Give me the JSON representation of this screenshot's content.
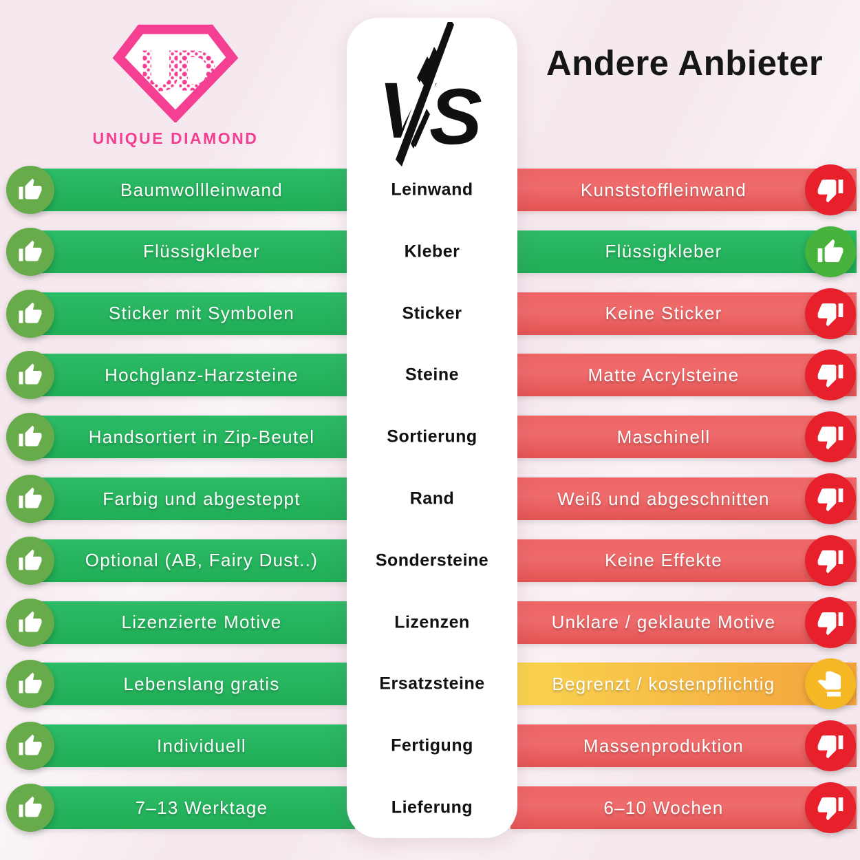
{
  "header": {
    "brand_monogram": "UD",
    "brand_name": "UNIQUE DIAMOND",
    "vs_label": "VS",
    "competitor_name": "Andere Anbieter"
  },
  "colors": {
    "background": "#f5e9ef",
    "brand_pink": "#f43f93",
    "ink": "#161616",
    "green_bar": "#2dbb66",
    "green_bar_dark": "#1fad56",
    "green_circle": "#68ab4a",
    "green_circle_right": "#47b23c",
    "red_bar": "#ee6565",
    "red_bar_dark": "#e45353",
    "red_circle": "#e7202b",
    "yellow_bar": "#f9d550",
    "yellow_bar_dark": "#f4a23c",
    "yellow_circle": "#f6b724"
  },
  "verdict_icons": {
    "positive": "thumbs-up-icon",
    "negative": "thumbs-down-icon",
    "limited": "thumb-sideways-icon"
  },
  "rows": [
    {
      "category": "Leinwand",
      "left_text": "Baumwollleinwand",
      "left_verdict": "positive",
      "right_text": "Kunststoffleinwand",
      "right_verdict": "negative"
    },
    {
      "category": "Kleber",
      "left_text": "Flüssigkleber",
      "left_verdict": "positive",
      "right_text": "Flüssigkleber",
      "right_verdict": "positive"
    },
    {
      "category": "Sticker",
      "left_text": "Sticker mit Symbolen",
      "left_verdict": "positive",
      "right_text": "Keine Sticker",
      "right_verdict": "negative"
    },
    {
      "category": "Steine",
      "left_text": "Hochglanz-Harzsteine",
      "left_verdict": "positive",
      "right_text": "Matte Acrylsteine",
      "right_verdict": "negative"
    },
    {
      "category": "Sortierung",
      "left_text": "Handsortiert in Zip-Beutel",
      "left_verdict": "positive",
      "right_text": "Maschinell",
      "right_verdict": "negative"
    },
    {
      "category": "Rand",
      "left_text": "Farbig und abgesteppt",
      "left_verdict": "positive",
      "right_text": "Weiß und abgeschnitten",
      "right_verdict": "negative"
    },
    {
      "category": "Sondersteine",
      "left_text": "Optional (AB, Fairy Dust..)",
      "left_verdict": "positive",
      "right_text": "Keine Effekte",
      "right_verdict": "negative"
    },
    {
      "category": "Lizenzen",
      "left_text": "Lizenzierte Motive",
      "left_verdict": "positive",
      "right_text": "Unklare / geklaute Motive",
      "right_verdict": "negative"
    },
    {
      "category": "Ersatzsteine",
      "left_text": "Lebenslang gratis",
      "left_verdict": "positive",
      "right_text": "Begrenzt / kostenpflichtig",
      "right_verdict": "limited"
    },
    {
      "category": "Fertigung",
      "left_text": "Individuell",
      "left_verdict": "positive",
      "right_text": "Massenproduktion",
      "right_verdict": "negative"
    },
    {
      "category": "Lieferung",
      "left_text": "7–13 Werktage",
      "left_verdict": "positive",
      "right_text": "6–10 Wochen",
      "right_verdict": "negative"
    }
  ]
}
